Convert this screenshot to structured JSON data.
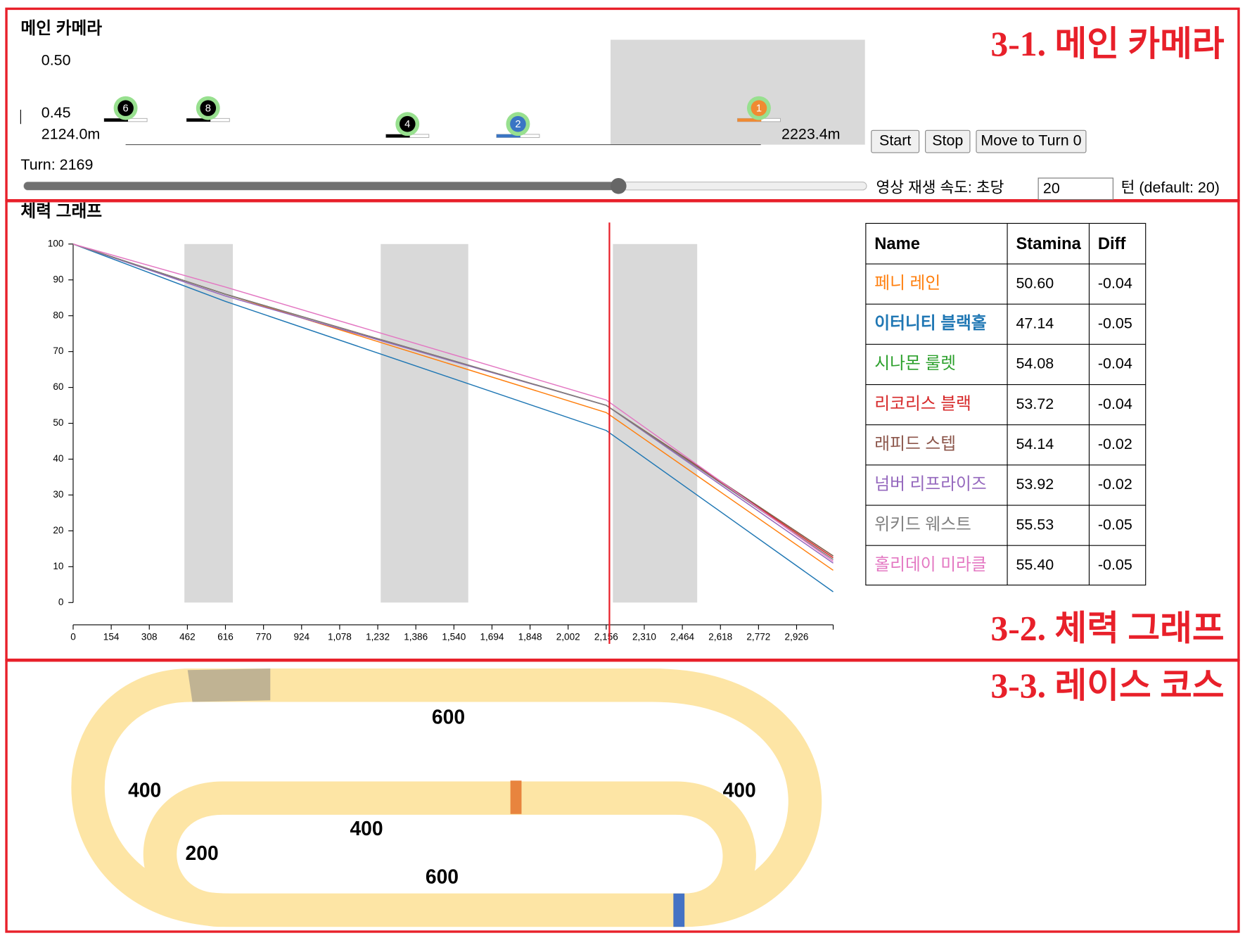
{
  "sections": [
    "3-1. 메인 카메라",
    "3-2. 체력 그래프",
    "3-3. 레이스 코스"
  ],
  "camera": {
    "title": "메인 카메라",
    "scale_top": "0.50",
    "scale_bottom": "0.45",
    "range_start": {
      "value": 2124.0,
      "label": "2124.0m"
    },
    "range_end": {
      "value": 2223.4,
      "label": "2223.4m"
    },
    "runners": [
      {
        "number": "6",
        "color": "#000000",
        "distance": 2124.0,
        "lane": 0
      },
      {
        "number": "8",
        "color": "#000000",
        "distance": 2136.9,
        "lane": 0
      },
      {
        "number": "4",
        "color": "#000000",
        "distance": 2168.1,
        "lane": 1
      },
      {
        "number": "2",
        "color": "#3a75c4",
        "distance": 2185.4,
        "lane": 1
      },
      {
        "number": "1",
        "color": "#f08a32",
        "distance": 2223.1,
        "lane": 0
      }
    ],
    "buttons": [
      "Start",
      "Stop",
      "Move to Turn 0"
    ],
    "turn_label": "Turn:",
    "turn": 2169,
    "speed_label": "영상 재생 속도: 초당",
    "speed_value": "20",
    "speed_suffix": "턴 (default: 20)"
  },
  "chart": {
    "type": "line",
    "title": "체력 그래프",
    "x": [
      0,
      616,
      2156,
      3074
    ],
    "series": [
      {
        "name": "페니 레인",
        "color": "#ff7f0e",
        "values": [
          100,
          86,
          53,
          9
        ]
      },
      {
        "name": "이터니티 블랙홀",
        "color": "#1f77b4",
        "values": [
          100,
          84,
          48,
          3
        ]
      },
      {
        "name": "시나몬 룰렛",
        "color": "#2ca02c",
        "values": [
          100,
          86,
          55,
          13
        ]
      },
      {
        "name": "리코리스 블랙",
        "color": "#d62728",
        "values": [
          100,
          86,
          55,
          12.5
        ]
      },
      {
        "name": "래피드 스텝",
        "color": "#8c564b",
        "values": [
          100,
          86,
          55,
          13
        ]
      },
      {
        "name": "넘버 리프라이즈",
        "color": "#9467bd",
        "values": [
          100,
          85.5,
          55,
          11
        ]
      },
      {
        "name": "위키드 웨스트",
        "color": "#7f7f7f",
        "values": [
          100,
          86,
          55,
          12
        ]
      },
      {
        "name": "홀리데이 미라클",
        "color": "#e377c2",
        "values": [
          100,
          88,
          56.5,
          11.5
        ]
      }
    ],
    "highlight_ranges": [
      [
        450,
        646
      ],
      [
        1244,
        1598
      ],
      [
        2183,
        2524
      ]
    ],
    "xlim": [
      0,
      3074
    ],
    "ylim": [
      0,
      100
    ],
    "xticks": [
      0,
      154,
      308,
      462,
      616,
      770,
      924,
      {
        "value": 1078,
        "label": "1,078"
      },
      {
        "value": 1232,
        "label": "1,232"
      },
      {
        "value": 1386,
        "label": "1,386"
      },
      {
        "value": 1540,
        "label": "1,540"
      },
      {
        "value": 1694,
        "label": "1,694"
      },
      {
        "value": 1848,
        "label": "1,848"
      },
      {
        "value": 2002,
        "label": "2,002"
      },
      {
        "value": 2156,
        "label": "2,156"
      },
      {
        "value": 2310,
        "label": "2,310"
      },
      {
        "value": 2464,
        "label": "2,464"
      },
      {
        "value": 2618,
        "label": "2,618"
      },
      {
        "value": 2772,
        "label": "2,772"
      },
      {
        "value": 2926,
        "label": "2,926"
      }
    ],
    "yticks": [
      0,
      10,
      20,
      30,
      40,
      50,
      60,
      70,
      80,
      90,
      100
    ]
  },
  "table": {
    "header": [
      "Name",
      "Stamina",
      "Diff"
    ],
    "highlighted_row": 1,
    "rows": [
      [
        "페니 레인",
        "50.60",
        "-0.04"
      ],
      [
        "이터니티 블랙홀",
        "47.14",
        "-0.05"
      ],
      [
        "시나몬 룰렛",
        "54.08",
        "-0.04"
      ],
      [
        "리코리스 블랙",
        "53.72",
        "-0.04"
      ],
      [
        "래피드 스텝",
        "54.14",
        "-0.02"
      ],
      [
        "넘버 리프라이즈",
        "53.92",
        "-0.02"
      ],
      [
        "위키드 웨스트",
        "55.53",
        "-0.05"
      ],
      [
        "홀리데이 미라클",
        "55.40",
        "-0.05"
      ]
    ]
  },
  "course": {
    "labels": [
      600,
      400,
      400,
      400,
      200,
      600
    ]
  }
}
